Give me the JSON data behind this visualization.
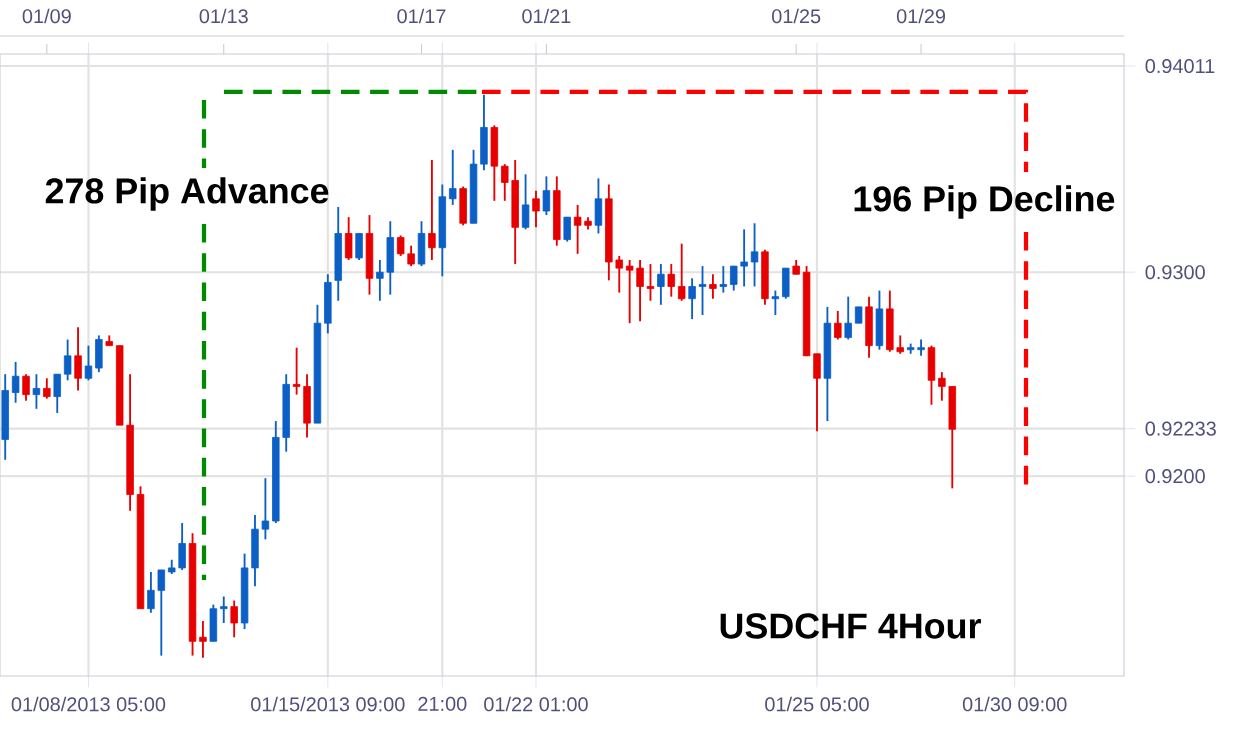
{
  "chart_data": {
    "type": "candlestick",
    "categories": [
      null,
      null,
      null,
      null,
      null,
      null,
      null,
      null,
      "01/08/2013 05:00",
      null,
      null,
      null,
      null,
      null,
      null,
      null,
      null,
      null,
      null,
      null,
      null,
      null,
      null,
      null,
      null,
      null,
      null,
      null,
      null,
      null,
      null,
      "01/15/2013 09:00",
      null,
      null,
      null,
      null,
      null,
      null,
      null,
      null,
      null,
      null,
      "21:00",
      null,
      null,
      null,
      null,
      null,
      null,
      null,
      null,
      "01/22 01:00",
      null,
      null,
      null,
      null,
      null,
      null,
      null,
      null,
      null,
      null,
      null,
      null,
      null,
      null,
      null,
      null,
      null,
      null,
      null,
      null,
      null,
      null,
      null,
      null,
      null,
      null,
      "01/25 05:00",
      null,
      null,
      null,
      null,
      null,
      null,
      null,
      null,
      null,
      null,
      null,
      null,
      null,
      null,
      null,
      null,
      null,
      null,
      "01/30 09:00",
      null,
      null,
      null,
      null,
      null,
      null,
      null,
      null,
      null,
      null
    ],
    "ohlc": [
      [
        0.9218,
        0.925,
        0.9208,
        0.9242
      ],
      [
        0.9241,
        0.9256,
        0.9236,
        0.9249
      ],
      [
        0.9249,
        0.925,
        0.9237,
        0.924
      ],
      [
        0.924,
        0.925,
        0.9233,
        0.9243
      ],
      [
        0.9243,
        0.9248,
        0.9238,
        0.9239
      ],
      [
        0.9239,
        0.925,
        0.9231,
        0.925
      ],
      [
        0.925,
        0.9267,
        0.9247,
        0.9259
      ],
      [
        0.9259,
        0.9273,
        0.9242,
        0.9248
      ],
      [
        0.9248,
        0.9264,
        0.9247,
        0.9254
      ],
      [
        0.9253,
        0.9269,
        0.9251,
        0.9267
      ],
      [
        0.9266,
        0.9269,
        0.9264,
        0.9264
      ],
      [
        0.9264,
        0.9264,
        0.9225,
        0.9225
      ],
      [
        0.9225,
        0.925,
        0.9183,
        0.9191
      ],
      [
        0.9191,
        0.9195,
        0.9135,
        0.9135
      ],
      [
        0.9135,
        0.9153,
        0.9133,
        0.9144
      ],
      [
        0.9144,
        0.9154,
        0.9112,
        0.9154
      ],
      [
        0.9153,
        0.9159,
        0.9152,
        0.9155
      ],
      [
        0.9155,
        0.9177,
        0.9154,
        0.9167
      ],
      [
        0.9167,
        0.9172,
        0.9112,
        0.9119
      ],
      [
        0.9121,
        0.9129,
        0.9111,
        0.9119
      ],
      [
        0.9119,
        0.9137,
        0.9119,
        0.9135
      ],
      [
        0.9135,
        0.9141,
        0.9128,
        0.9136
      ],
      [
        0.9136,
        0.9139,
        0.9121,
        0.9128
      ],
      [
        0.9128,
        0.9162,
        0.9125,
        0.9155
      ],
      [
        0.9155,
        0.9181,
        0.9146,
        0.9174
      ],
      [
        0.9174,
        0.9199,
        0.9169,
        0.9178
      ],
      [
        0.9178,
        0.9227,
        0.9177,
        0.9219
      ],
      [
        0.9219,
        0.925,
        0.9212,
        0.9245
      ],
      [
        0.9245,
        0.9263,
        0.924,
        0.9244
      ],
      [
        0.9244,
        0.925,
        0.9219,
        0.9226
      ],
      [
        0.9226,
        0.9284,
        0.9226,
        0.9275
      ],
      [
        0.9275,
        0.9299,
        0.927,
        0.9295
      ],
      [
        0.9296,
        0.9332,
        0.9286,
        0.9319
      ],
      [
        0.9319,
        0.9327,
        0.9306,
        0.9307
      ],
      [
        0.9307,
        0.9319,
        0.9306,
        0.9319
      ],
      [
        0.9319,
        0.9328,
        0.9289,
        0.9297
      ],
      [
        0.9297,
        0.9306,
        0.9286,
        0.93
      ],
      [
        0.93,
        0.9325,
        0.9289,
        0.9317
      ],
      [
        0.9317,
        0.9318,
        0.9308,
        0.9309
      ],
      [
        0.9309,
        0.9313,
        0.9303,
        0.9304
      ],
      [
        0.9304,
        0.9325,
        0.9303,
        0.9319
      ],
      [
        0.9319,
        0.9355,
        0.9306,
        0.9312
      ],
      [
        0.9312,
        0.9343,
        0.9298,
        0.9337
      ],
      [
        0.9336,
        0.936,
        0.9333,
        0.9341
      ],
      [
        0.9341,
        0.9342,
        0.9323,
        0.9324
      ],
      [
        0.9324,
        0.936,
        0.9324,
        0.9353
      ],
      [
        0.9353,
        0.9387,
        0.935,
        0.9371
      ],
      [
        0.9371,
        0.9372,
        0.9335,
        0.9352
      ],
      [
        0.9352,
        0.9353,
        0.9335,
        0.9344
      ],
      [
        0.9345,
        0.9355,
        0.9304,
        0.9322
      ],
      [
        0.9322,
        0.9348,
        0.9321,
        0.9333
      ],
      [
        0.9336,
        0.934,
        0.9322,
        0.933
      ],
      [
        0.933,
        0.9347,
        0.9328,
        0.934
      ],
      [
        0.934,
        0.9347,
        0.9313,
        0.9316
      ],
      [
        0.9316,
        0.9327,
        0.9315,
        0.9327
      ],
      [
        0.9327,
        0.9333,
        0.9309,
        0.9323
      ],
      [
        0.9325,
        0.9327,
        0.9321,
        0.9323
      ],
      [
        0.9323,
        0.9346,
        0.9319,
        0.9336
      ],
      [
        0.9336,
        0.9343,
        0.9296,
        0.9305
      ],
      [
        0.9306,
        0.9308,
        0.929,
        0.9302
      ],
      [
        0.9303,
        0.9306,
        0.9275,
        0.9301
      ],
      [
        0.9302,
        0.9306,
        0.9276,
        0.9293
      ],
      [
        0.9293,
        0.9304,
        0.9286,
        0.9292
      ],
      [
        0.9293,
        0.9304,
        0.9284,
        0.9299
      ],
      [
        0.9299,
        0.9304,
        0.9288,
        0.9293
      ],
      [
        0.9293,
        0.9314,
        0.9286,
        0.9287
      ],
      [
        0.9287,
        0.9297,
        0.9277,
        0.9293
      ],
      [
        0.9293,
        0.9303,
        0.9279,
        0.9294
      ],
      [
        0.9294,
        0.9299,
        0.9287,
        0.9292
      ],
      [
        0.9293,
        0.9303,
        0.929,
        0.9294
      ],
      [
        0.9294,
        0.9303,
        0.9291,
        0.9303
      ],
      [
        0.9303,
        0.9321,
        0.9293,
        0.9305
      ],
      [
        0.9305,
        0.9324,
        0.9293,
        0.931
      ],
      [
        0.931,
        0.9311,
        0.9284,
        0.9287
      ],
      [
        0.9287,
        0.9291,
        0.9279,
        0.9288
      ],
      [
        0.9288,
        0.9302,
        0.9287,
        0.9302
      ],
      [
        0.9303,
        0.9306,
        0.9299,
        0.9299
      ],
      [
        0.93,
        0.9303,
        0.9259,
        0.9259
      ],
      [
        0.926,
        0.926,
        0.9222,
        0.9248
      ],
      [
        0.9248,
        0.9283,
        0.9227,
        0.9275
      ],
      [
        0.9275,
        0.9281,
        0.9267,
        0.9268
      ],
      [
        0.9268,
        0.9288,
        0.9267,
        0.9275
      ],
      [
        0.9275,
        0.9283,
        0.9275,
        0.9283
      ],
      [
        0.9283,
        0.9288,
        0.9258,
        0.9264
      ],
      [
        0.9264,
        0.9291,
        0.9262,
        0.9282
      ],
      [
        0.9282,
        0.9291,
        0.9261,
        0.9262
      ],
      [
        0.9263,
        0.9269,
        0.926,
        0.9261
      ],
      [
        0.9262,
        0.9265,
        0.926,
        0.9263
      ],
      [
        0.9262,
        0.9267,
        0.9259,
        0.9263
      ],
      [
        0.9263,
        0.9264,
        0.9235,
        0.9247
      ],
      [
        0.9248,
        0.9251,
        0.9237,
        0.9244
      ],
      [
        0.9244,
        0.9244,
        0.9194,
        0.9223
      ],
      null,
      null,
      null,
      null,
      null,
      null,
      null,
      null,
      null,
      null,
      null,
      null,
      null,
      null,
      null,
      null
    ],
    "colors": [
      "#0b5fc5",
      "#0b5fc5",
      "#e60000",
      "#0b5fc5",
      "#e60000",
      "#0b5fc5",
      "#0b5fc5",
      "#e60000",
      "#0b5fc5",
      "#0b5fc5",
      "#e60000",
      "#e60000",
      "#e60000",
      "#e60000",
      "#0b5fc5",
      "#0b5fc5",
      "#0b5fc5",
      "#0b5fc5",
      "#e60000",
      "#e60000",
      "#0b5fc5",
      "#0b5fc5",
      "#e60000",
      "#0b5fc5",
      "#0b5fc5",
      "#0b5fc5",
      "#0b5fc5",
      "#0b5fc5",
      "#e60000",
      "#e60000",
      "#0b5fc5",
      "#0b5fc5",
      "#0b5fc5",
      "#e60000",
      "#0b5fc5",
      "#e60000",
      "#0b5fc5",
      "#0b5fc5",
      "#e60000",
      "#e60000",
      "#0b5fc5",
      "#e60000",
      "#0b5fc5",
      "#0b5fc5",
      "#e60000",
      "#0b5fc5",
      "#0b5fc5",
      "#e60000",
      "#e60000",
      "#e60000",
      "#0b5fc5",
      "#e60000",
      "#0b5fc5",
      "#e60000",
      "#0b5fc5",
      "#e60000",
      "#e60000",
      "#0b5fc5",
      "#e60000",
      "#e60000",
      "#e60000",
      "#e60000",
      "#e60000",
      "#0b5fc5",
      "#e60000",
      "#e60000",
      "#0b5fc5",
      "#0b5fc5",
      "#e60000",
      "#0b5fc5",
      "#0b5fc5",
      "#0b5fc5",
      "#0b5fc5",
      "#e60000",
      "#0b5fc5",
      "#0b5fc5",
      "#e60000",
      "#e60000",
      "#e60000",
      "#0b5fc5",
      "#e60000",
      "#0b5fc5",
      "#0b5fc5",
      "#e60000",
      "#0b5fc5",
      "#e60000",
      "#e60000",
      "#0b5fc5",
      "#0b5fc5",
      "#e60000",
      "#e60000",
      "#e60000",
      null,
      null,
      null,
      null,
      null,
      null,
      null,
      null,
      null,
      null,
      null,
      null,
      null,
      null,
      null,
      null
    ],
    "ylim": [
      0.9102,
      0.9407
    ],
    "yticks": [
      {
        "value": 0.92,
        "label": "0.9200"
      },
      0.92233,
      {
        "value": 0.93,
        "label": "0.9300"
      },
      0.94011
    ],
    "grid": true,
    "annotations": [
      "278 Pip Advance",
      "196 Pip Decline",
      "USDCHF 4Hour",
      "01/09",
      "01/13",
      "01/17",
      "01/21",
      "01/25",
      "01/29"
    ]
  }
}
